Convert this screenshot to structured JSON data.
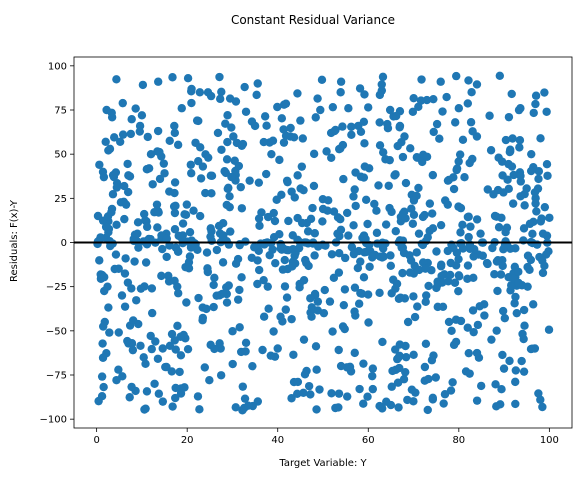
{
  "chart_data": {
    "type": "scatter",
    "title": "Constant Residual Variance",
    "xlabel": "Target Variable: Y",
    "ylabel": "Residuals: F(x)-Y",
    "xlim": [
      -5,
      105
    ],
    "ylim": [
      -105,
      105
    ],
    "xticks": [
      0,
      20,
      40,
      60,
      80,
      100
    ],
    "yticks": [
      -100,
      -75,
      -50,
      -25,
      0,
      25,
      50,
      75,
      100
    ],
    "grid": false,
    "legend": "none",
    "marker_color": "#1f77b4",
    "reference_line": {
      "y": 0,
      "color": "#000000"
    },
    "series": [
      {
        "n_points": 1000,
        "x_range": [
          0,
          100
        ],
        "y_range": [
          -95,
          95
        ],
        "noise": "uniform-like, constant variance",
        "points": [
          [
            0.3,
            15
          ],
          [
            0.6,
            44
          ],
          [
            0.8,
            2
          ],
          [
            1.0,
            -20
          ],
          [
            1.2,
            -87
          ],
          [
            1.4,
            40
          ],
          [
            1.6,
            37
          ],
          [
            1.8,
            -45
          ],
          [
            2.0,
            57
          ],
          [
            2.2,
            75
          ],
          [
            2.4,
            -25
          ],
          [
            2.6,
            12
          ],
          [
            2.8,
            -51
          ],
          [
            3.0,
            -2
          ],
          [
            3.4,
            19
          ],
          [
            4.0,
            -15
          ],
          [
            4.4,
            10
          ],
          [
            4.8,
            -72
          ],
          [
            5.2,
            57
          ],
          [
            5.6,
            -30
          ],
          [
            6.0,
            23
          ],
          [
            6.4,
            -9
          ],
          [
            7.0,
            38
          ],
          [
            7.4,
            -47
          ],
          [
            7.8,
            -57
          ],
          [
            8.2,
            2
          ],
          [
            8.6,
            -84
          ],
          [
            9.0,
            5
          ],
          [
            9.6,
            66
          ],
          [
            10.0,
            72
          ],
          [
            10.4,
            -65
          ],
          [
            11.0,
            12
          ],
          [
            11.6,
            42
          ],
          [
            12.2,
            -26
          ],
          [
            12.8,
            -80
          ],
          [
            13.6,
            91
          ],
          [
            14.0,
            36
          ],
          [
            14.6,
            -60
          ],
          [
            15.4,
            5
          ],
          [
            16.0,
            -22
          ],
          [
            16.6,
            -73
          ],
          [
            17.2,
            28
          ],
          [
            18.0,
            -5
          ],
          [
            18.8,
            76
          ],
          [
            19.4,
            -82
          ],
          [
            20.2,
            93
          ],
          [
            20.8,
            44
          ],
          [
            21.4,
            18
          ],
          [
            22.2,
            69
          ],
          [
            22.8,
            85
          ],
          [
            23.4,
            -44
          ],
          [
            24.0,
            28
          ],
          [
            24.6,
            85
          ],
          [
            25.2,
            8
          ],
          [
            26.0,
            -20
          ],
          [
            26.8,
            62
          ],
          [
            27.4,
            -60
          ],
          [
            28.0,
            4
          ],
          [
            28.8,
            -34
          ],
          [
            29.4,
            20
          ],
          [
            30.2,
            60
          ],
          [
            30.8,
            -12
          ],
          [
            31.6,
            -48
          ],
          [
            32.2,
            -95
          ],
          [
            33.0,
            74
          ],
          [
            33.8,
            35
          ],
          [
            34.4,
            -70
          ],
          [
            35.0,
            66
          ],
          [
            35.6,
            -90
          ],
          [
            36.4,
            17
          ],
          [
            37.0,
            -42
          ],
          [
            37.8,
            -25
          ],
          [
            38.6,
            50
          ],
          [
            39.2,
            3
          ],
          [
            40.0,
            -60
          ],
          [
            40.8,
            27
          ],
          [
            41.4,
            78
          ],
          [
            42.2,
            -15
          ],
          [
            42.8,
            60
          ],
          [
            43.6,
            -79
          ],
          [
            44.4,
            38
          ],
          [
            45.0,
            69
          ],
          [
            45.8,
            -55
          ],
          [
            46.4,
            11
          ],
          [
            47.2,
            -86
          ],
          [
            48.0,
            32
          ],
          [
            48.6,
            -72
          ],
          [
            49.4,
            75
          ],
          [
            50.2,
            -40
          ],
          [
            51.0,
            18
          ],
          [
            51.8,
            62
          ],
          [
            52.4,
            -20
          ],
          [
            53.2,
            5
          ],
          [
            54.0,
            91
          ],
          [
            54.8,
            -49
          ],
          [
            55.6,
            76
          ],
          [
            56.2,
            -73
          ],
          [
            57.0,
            30
          ],
          [
            57.8,
            66
          ],
          [
            58.6,
            -29
          ],
          [
            59.4,
            2
          ],
          [
            60.2,
            42
          ],
          [
            61.0,
            -83
          ],
          [
            61.8,
            18
          ],
          [
            62.6,
            55
          ],
          [
            63.4,
            -8
          ],
          [
            64.2,
            67
          ],
          [
            65.0,
            -92
          ],
          [
            65.8,
            38
          ],
          [
            66.4,
            -66
          ],
          [
            67.2,
            12
          ],
          [
            68.0,
            60
          ],
          [
            68.8,
            -45
          ],
          [
            69.6,
            27
          ],
          [
            70.4,
            -85
          ],
          [
            71.2,
            5
          ],
          [
            72.0,
            48
          ],
          [
            72.8,
            -30
          ],
          [
            73.6,
            22
          ],
          [
            74.4,
            -64
          ],
          [
            75.2,
            67
          ],
          [
            76.0,
            91
          ],
          [
            76.8,
            -18
          ],
          [
            77.6,
            35
          ],
          [
            78.4,
            -50
          ],
          [
            79.2,
            68
          ],
          [
            80.0,
            76
          ],
          [
            80.8,
            10
          ],
          [
            81.6,
            -73
          ],
          [
            82.4,
            45
          ],
          [
            83.2,
            -20
          ],
          [
            84.0,
            60
          ],
          [
            84.8,
            5
          ],
          [
            85.6,
            -35
          ],
          [
            86.4,
            30
          ],
          [
            87.2,
            -55
          ],
          [
            88.0,
            15
          ],
          [
            88.8,
            48
          ],
          [
            89.6,
            -10
          ],
          [
            90.4,
            58
          ],
          [
            91.2,
            -67
          ],
          [
            92.0,
            22
          ],
          [
            92.8,
            -40
          ],
          [
            93.6,
            76
          ],
          [
            94.4,
            8
          ],
          [
            95.2,
            -25
          ],
          [
            96.0,
            50
          ],
          [
            96.8,
            -60
          ],
          [
            97.6,
            36
          ],
          [
            98.0,
            -89
          ],
          [
            98.6,
            5
          ],
          [
            99.0,
            20
          ],
          [
            99.4,
            74
          ],
          [
            99.8,
            -5
          ],
          [
            100.0,
            14
          ]
        ]
      }
    ]
  }
}
